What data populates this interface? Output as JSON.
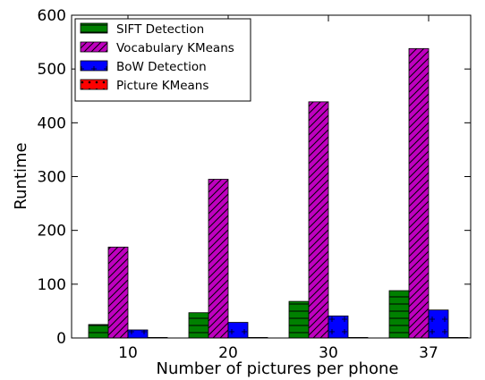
{
  "chart_data": {
    "type": "bar",
    "title": "",
    "xlabel": "Number of pictures per phone",
    "ylabel": "Runtime",
    "categories": [
      "10",
      "20",
      "30",
      "37"
    ],
    "ylim": [
      0,
      600
    ],
    "yticks": [
      0,
      100,
      200,
      300,
      400,
      500,
      600
    ],
    "grid": false,
    "legend_position": "top-left",
    "series": [
      {
        "name": "SIFT Detection",
        "values": [
          25,
          47,
          68,
          88
        ],
        "color": "#008000",
        "hatch": "horizontal-lines"
      },
      {
        "name": "Vocabulary KMeans",
        "values": [
          169,
          295,
          439,
          538
        ],
        "color": "#bf00bf",
        "hatch": "diagonal-lines"
      },
      {
        "name": "BoW Detection",
        "values": [
          15,
          29,
          41,
          52
        ],
        "color": "#0000ff",
        "hatch": "plus"
      },
      {
        "name": "Picture KMeans",
        "values": [
          1,
          1,
          1,
          1
        ],
        "color": "#ff0000",
        "hatch": "dots"
      }
    ]
  }
}
